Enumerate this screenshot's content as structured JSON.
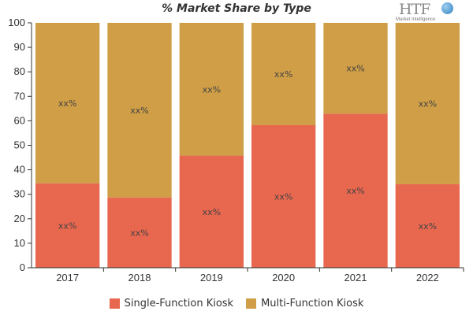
{
  "chart_data": {
    "type": "bar",
    "stacked": true,
    "title": "% Market Share by Type",
    "categories": [
      "2017",
      "2018",
      "2019",
      "2020",
      "2021",
      "2022"
    ],
    "series": [
      {
        "name": "Single-Function Kiosk",
        "color": "#e8674f",
        "values": [
          34.5,
          28.7,
          45.8,
          58.2,
          62.9,
          34.1
        ]
      },
      {
        "name": "Multi-Function Kiosk",
        "color": "#cf9e46",
        "values": [
          65.5,
          71.3,
          54.2,
          41.8,
          37.1,
          65.9
        ]
      }
    ],
    "data_label": "xx%",
    "ylim": [
      0,
      100
    ],
    "yticks": [
      "0",
      "10",
      "20",
      "30",
      "40",
      "50",
      "60",
      "70",
      "80",
      "90",
      "100"
    ],
    "legend_position": "bottom",
    "grid": false
  },
  "logo": {
    "mark": "HTF",
    "sub": "Market Intelligence"
  }
}
